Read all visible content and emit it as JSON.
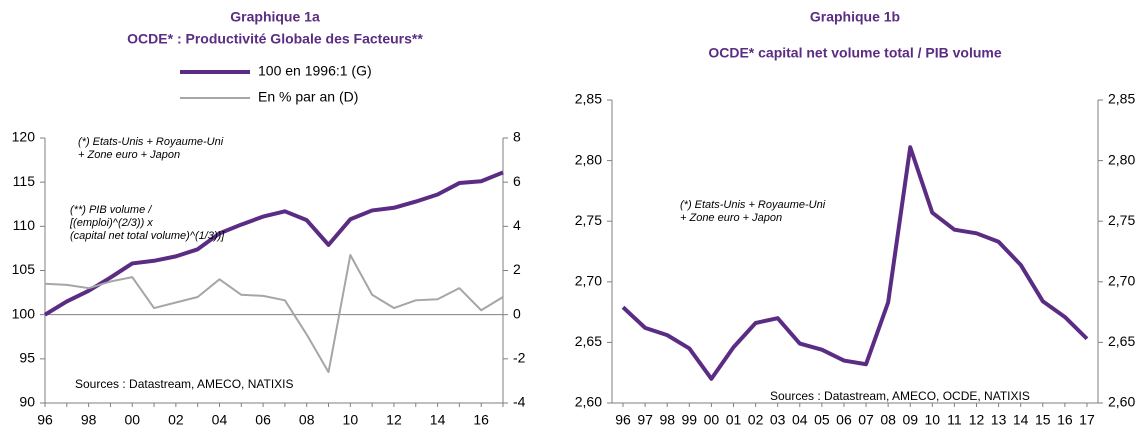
{
  "chart_data": [
    {
      "type": "line",
      "title": "Graphique 1a",
      "subtitle": "OCDE* : Productivité Globale des Facteurs**",
      "categories": [
        "96",
        null,
        "98",
        null,
        "00",
        null,
        "02",
        null,
        "04",
        null,
        "06",
        null,
        "08",
        null,
        "10",
        null,
        "12",
        null,
        "14",
        null,
        "16",
        null
      ],
      "series": [
        {
          "name": "100 en 1996:1 (G)",
          "color": "#5b2c83",
          "values": [
            100,
            101.5,
            102.7,
            104.2,
            105.8,
            106.1,
            106.6,
            107.4,
            109.2,
            110.2,
            111.1,
            111.7,
            110.7,
            107.9,
            110.8,
            111.8,
            112.1,
            112.8,
            113.6,
            114.9,
            115.1,
            116.1
          ]
        },
        {
          "name": "En % par an (D)",
          "color": "#a6a6a6",
          "axis": "y2",
          "values": [
            1.4,
            1.35,
            1.2,
            1.5,
            1.7,
            0.3,
            0.55,
            0.8,
            1.6,
            0.9,
            0.85,
            0.65,
            -0.9,
            -2.6,
            2.7,
            0.9,
            0.3,
            0.65,
            0.7,
            1.2,
            0.2,
            0.8
          ]
        }
      ],
      "ylim": [
        90,
        120
      ],
      "yticks": [
        90,
        95,
        100,
        105,
        110,
        115,
        120
      ],
      "y2lim": [
        -4,
        8
      ],
      "y2ticks": [
        -4,
        -2,
        0,
        2,
        4,
        6,
        8
      ],
      "zero_line": true,
      "annotations": [
        [
          "(*) Etats-Unis + Royaume-Uni",
          "+ Zone euro + Japon"
        ],
        [
          "(**) PIB volume /",
          "[(emploi)^(2/3)) x",
          "(capital net total volume)^(1/3))]"
        ],
        [
          "Sources : Datastream, AMECO, NATIXIS"
        ]
      ]
    },
    {
      "type": "line",
      "title": "Graphique 1b",
      "subtitle": "OCDE* capital net volume total / PIB volume",
      "categories": [
        "96",
        "97",
        "98",
        "99",
        "00",
        "01",
        "02",
        "03",
        "04",
        "05",
        "06",
        "07",
        "08",
        "09",
        "10",
        "11",
        "12",
        "13",
        "14",
        "15",
        "16",
        "17"
      ],
      "series": [
        {
          "color": "#5b2c83",
          "values": [
            2.679,
            2.662,
            2.656,
            2.645,
            2.62,
            2.646,
            2.666,
            2.67,
            2.649,
            2.644,
            2.635,
            2.632,
            2.683,
            2.811,
            2.757,
            2.743,
            2.74,
            2.733,
            2.714,
            2.684,
            2.671,
            2.653
          ]
        }
      ],
      "ylim": [
        2.6,
        2.85
      ],
      "yticks": [
        {
          "value": 2.6,
          "label": "2,60"
        },
        {
          "value": 2.65,
          "label": "2,65"
        },
        {
          "value": 2.7,
          "label": "2,70"
        },
        {
          "value": 2.75,
          "label": "2,75"
        },
        {
          "value": 2.8,
          "label": "2,80"
        },
        {
          "value": 2.85,
          "label": "2,85"
        }
      ],
      "y2lim": [
        2.6,
        2.85
      ],
      "y2ticks": [
        {
          "value": 2.6,
          "label": "2,60"
        },
        {
          "value": 2.65,
          "label": "2,65"
        },
        {
          "value": 2.7,
          "label": "2,70"
        },
        {
          "value": 2.75,
          "label": "2,75"
        },
        {
          "value": 2.8,
          "label": "2,80"
        },
        {
          "value": 2.85,
          "label": "2,85"
        }
      ],
      "annotations": [
        [
          "(*) Etats-Unis + Royaume-Uni",
          "+ Zone euro + Japon"
        ],
        [
          "Sources : Datastream, AMECO, OCDE, NATIXIS"
        ]
      ]
    }
  ]
}
